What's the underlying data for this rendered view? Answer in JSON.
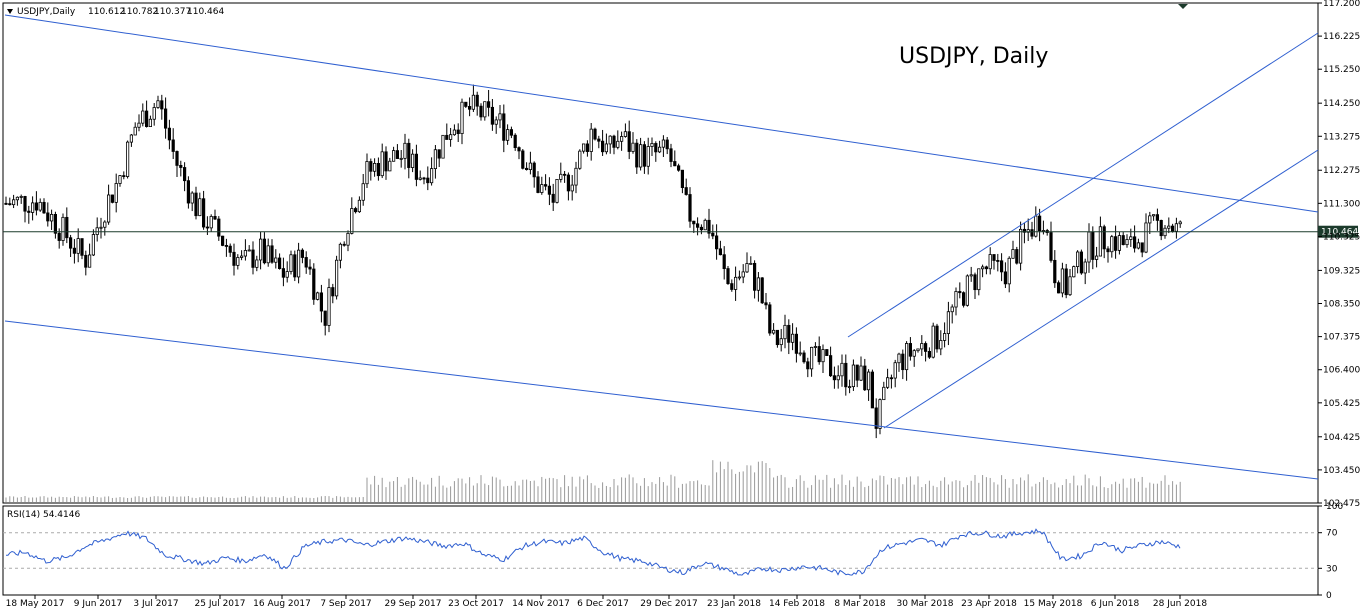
{
  "header": {
    "symbol": "USDJPY,Daily",
    "open": "110.612",
    "high": "110.782",
    "low": "110.377",
    "close": "110.464"
  },
  "chart_title": "USDJPY, Daily",
  "current_price_label": "110.464",
  "colors": {
    "trendline": "#2f5fd0",
    "price_line": "#1c3b2c",
    "rsi_line": "#2f5fd0",
    "candle": "#000000",
    "tag_bg": "#1c3b2c"
  },
  "chart_data": [
    {
      "type": "candlestick",
      "series_name": "USDJPY",
      "timeframe": "Daily",
      "ylim": [
        102.475,
        117.2
      ],
      "y_ticks": [
        "117.200",
        "116.225",
        "115.250",
        "114.250",
        "113.275",
        "112.275",
        "111.300",
        "110.325",
        "109.325",
        "108.350",
        "107.375",
        "106.400",
        "105.425",
        "104.425",
        "103.450",
        "102.475"
      ],
      "x_labels": [
        "18 May 2017",
        "9 Jun 2017",
        "3 Jul 2017",
        "25 Jul 2017",
        "16 Aug 2017",
        "7 Sep 2017",
        "29 Sep 2017",
        "23 Oct 2017",
        "14 Nov 2017",
        "6 Dec 2017",
        "29 Dec 2017",
        "23 Jan 2018",
        "14 Feb 2018",
        "8 Mar 2018",
        "30 Mar 2018",
        "23 Apr 2018",
        "15 May 2018",
        "6 Jun 2018",
        "28 Jun 2018"
      ],
      "close_path": [
        [
          "2017-05-18",
          111.3
        ],
        [
          "2017-05-29",
          111.4
        ],
        [
          "2017-06-09",
          110.3
        ],
        [
          "2017-06-15",
          109.6
        ],
        [
          "2017-06-21",
          111.0
        ],
        [
          "2017-06-27",
          112.0
        ],
        [
          "2017-07-03",
          113.6
        ],
        [
          "2017-07-11",
          114.3
        ],
        [
          "2017-07-17",
          112.6
        ],
        [
          "2017-07-25",
          111.1
        ],
        [
          "2017-08-02",
          110.3
        ],
        [
          "2017-08-10",
          109.5
        ],
        [
          "2017-08-16",
          109.9
        ],
        [
          "2017-08-24",
          109.2
        ],
        [
          "2017-09-01",
          109.8
        ],
        [
          "2017-09-08",
          107.9
        ],
        [
          "2017-09-15",
          110.5
        ],
        [
          "2017-09-22",
          112.1
        ],
        [
          "2017-09-29",
          112.6
        ],
        [
          "2017-10-06",
          112.7
        ],
        [
          "2017-10-13",
          112.1
        ],
        [
          "2017-10-23",
          113.6
        ],
        [
          "2017-10-30",
          114.1
        ],
        [
          "2017-11-06",
          113.8
        ],
        [
          "2017-11-14",
          113.4
        ],
        [
          "2017-11-21",
          112.0
        ],
        [
          "2017-11-28",
          111.4
        ],
        [
          "2017-12-06",
          112.3
        ],
        [
          "2017-12-12",
          113.5
        ],
        [
          "2017-12-18",
          112.8
        ],
        [
          "2017-12-22",
          113.3
        ],
        [
          "2017-12-29",
          112.7
        ],
        [
          "2018-01-08",
          112.8
        ],
        [
          "2018-01-15",
          111.0
        ],
        [
          "2018-01-23",
          110.6
        ],
        [
          "2018-01-29",
          108.9
        ],
        [
          "2018-02-05",
          109.4
        ],
        [
          "2018-02-09",
          108.9
        ],
        [
          "2018-02-14",
          107.2
        ],
        [
          "2018-02-21",
          107.5
        ],
        [
          "2018-02-28",
          106.7
        ],
        [
          "2018-03-08",
          106.4
        ],
        [
          "2018-03-14",
          106.2
        ],
        [
          "2018-03-20",
          106.1
        ],
        [
          "2018-03-23",
          104.8
        ],
        [
          "2018-03-30",
          106.6
        ],
        [
          "2018-04-06",
          107.0
        ],
        [
          "2018-04-13",
          107.3
        ],
        [
          "2018-04-23",
          108.7
        ],
        [
          "2018-04-30",
          109.4
        ],
        [
          "2018-05-08",
          109.3
        ],
        [
          "2018-05-15",
          110.4
        ],
        [
          "2018-05-21",
          111.0
        ],
        [
          "2018-05-25",
          109.3
        ],
        [
          "2018-05-29",
          108.8
        ],
        [
          "2018-06-06",
          110.0
        ],
        [
          "2018-06-13",
          110.3
        ],
        [
          "2018-06-21",
          110.0
        ],
        [
          "2018-06-28",
          110.5
        ],
        [
          "2018-07-03",
          110.8
        ],
        [
          "2018-07-09",
          110.46
        ]
      ],
      "volume_pattern": "low-until-Sep-2017-then-elevated"
    },
    {
      "type": "line",
      "series_name": "RSI(14)",
      "current_value": "54.4146",
      "ylim": [
        0,
        100
      ],
      "y_ticks": [
        "100",
        "70",
        "30",
        "0"
      ],
      "levels": [
        70,
        30
      ],
      "values_approx": [
        45,
        48,
        38,
        42,
        55,
        62,
        70,
        64,
        45,
        40,
        35,
        42,
        38,
        46,
        30,
        55,
        60,
        62,
        56,
        60,
        64,
        60,
        55,
        58,
        45,
        40,
        55,
        60,
        58,
        64,
        48,
        40,
        38,
        30,
        25,
        36,
        30,
        22,
        30,
        28,
        32,
        30,
        24,
        26,
        52,
        58,
        62,
        56,
        68,
        70,
        66,
        70,
        72,
        40,
        44,
        60,
        50,
        56,
        60,
        54
      ]
    }
  ]
}
